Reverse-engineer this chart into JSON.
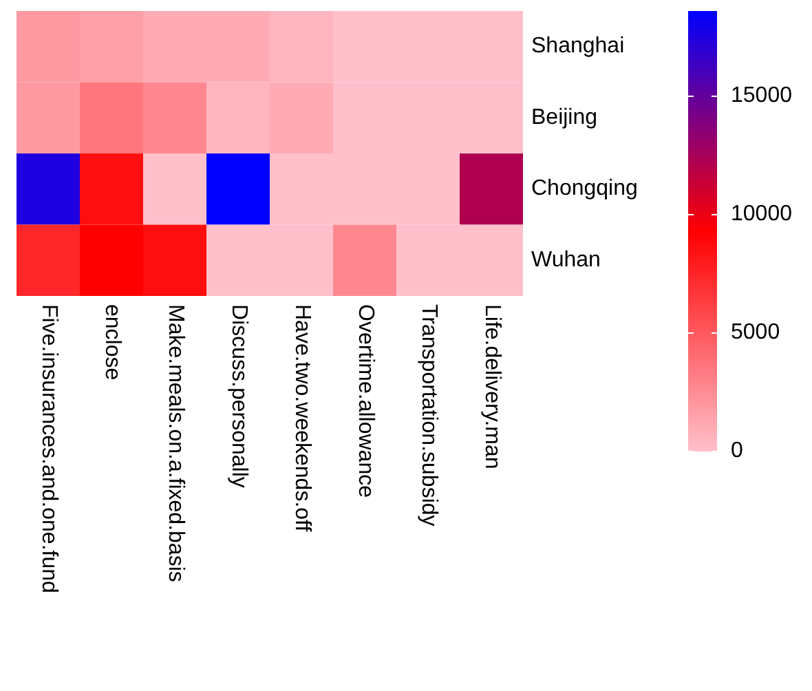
{
  "chart_data": {
    "type": "heatmap",
    "categories": [
      "Five.insurances.and.one.fund",
      "enclose",
      "Make.meals.on.a.fixed.basis",
      "Discuss.personally",
      "Have.two.weekends.off",
      "Overtime.allowance",
      "Transportation.subsidy",
      "Life.delivery.man"
    ],
    "y_categories": [
      "Shanghai",
      "Beijing",
      "Chongqing",
      "Wuhan"
    ],
    "cells": [
      [
        1850,
        1600,
        950,
        950,
        550,
        0,
        0,
        0
      ],
      [
        1850,
        3600,
        2700,
        550,
        950,
        0,
        0,
        0
      ],
      [
        17500,
        8600,
        0,
        18600,
        0,
        0,
        0,
        12200
      ],
      [
        7400,
        9300,
        8600,
        0,
        0,
        2700,
        0,
        0
      ]
    ],
    "clim": [
      0,
      18600
    ],
    "cticks": [
      0,
      5000,
      10000,
      15000
    ]
  }
}
